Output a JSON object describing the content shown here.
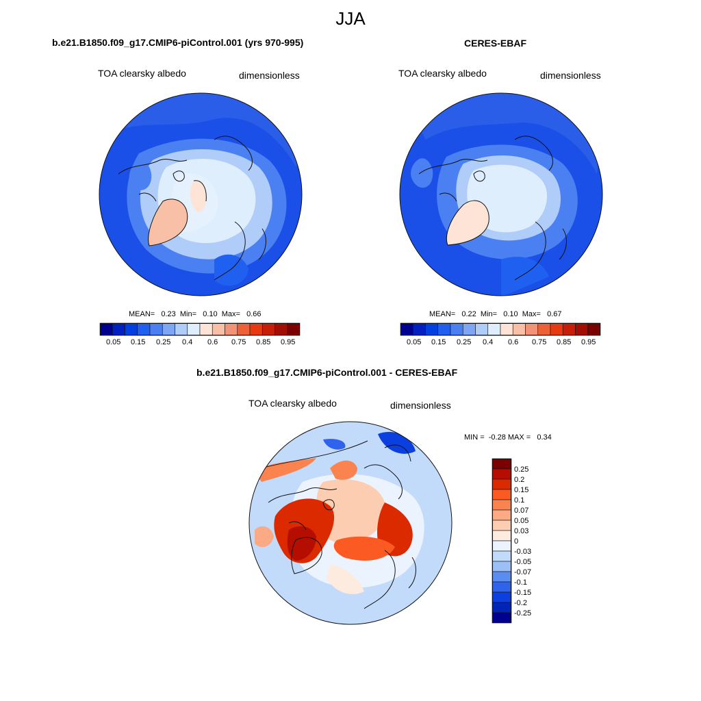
{
  "page_title": "JJA",
  "colors": {
    "seq": [
      "#00008f",
      "#0020c0",
      "#0040e0",
      "#2060f0",
      "#4a80f2",
      "#7da6f5",
      "#b0cdf9",
      "#dfeefd",
      "#fde4d6",
      "#f8c0a6",
      "#f29378",
      "#ec6236",
      "#e83a10",
      "#c81e06",
      "#a30e03",
      "#7c0000"
    ],
    "div": [
      "#7c0000",
      "#b50e00",
      "#dc2a00",
      "#fb5a22",
      "#fb8350",
      "#fcaa85",
      "#fdcdb2",
      "#fdebe0",
      "#eaf3fe",
      "#c3dbfb",
      "#9bc0f8",
      "#5a8cf2",
      "#2f63ec",
      "#0b3fe0",
      "#0024b8",
      "#00008f"
    ],
    "coast": "#111111"
  },
  "panels": [
    {
      "id": "model",
      "title": "b.e21.B1850.f09_g17.CMIP6-piControl.001 (yrs 970-995)",
      "left_label": "TOA clearsky albedo",
      "right_label": "dimensionless",
      "stats": "MEAN=   0.23  Min=   0.10  Max=   0.66",
      "colorbar_ticks": [
        "0.05",
        "0.15",
        "0.25",
        "0.4",
        "0.6",
        "0.75",
        "0.85",
        "0.95"
      ]
    },
    {
      "id": "obs",
      "title": "CERES-EBAF",
      "left_label": "TOA clearsky albedo",
      "right_label": "dimensionless",
      "stats": "MEAN=   0.22  Min=   0.10  Max=   0.67",
      "colorbar_ticks": [
        "0.05",
        "0.15",
        "0.25",
        "0.4",
        "0.6",
        "0.75",
        "0.85",
        "0.95"
      ]
    },
    {
      "id": "diff",
      "title": "b.e21.B1850.f09_g17.CMIP6-piControl.001 - CERES-EBAF",
      "left_label": "TOA clearsky albedo",
      "right_label": "dimensionless",
      "stats": "MIN =  -0.28 MAX =   0.34",
      "colorbar_ticks": [
        "0.25",
        "0.2",
        "0.15",
        "0.1",
        "0.07",
        "0.05",
        "0.03",
        "0",
        "-0.03",
        "-0.05",
        "-0.07",
        "-0.1",
        "-0.15",
        "-0.2",
        "-0.25"
      ]
    }
  ]
}
